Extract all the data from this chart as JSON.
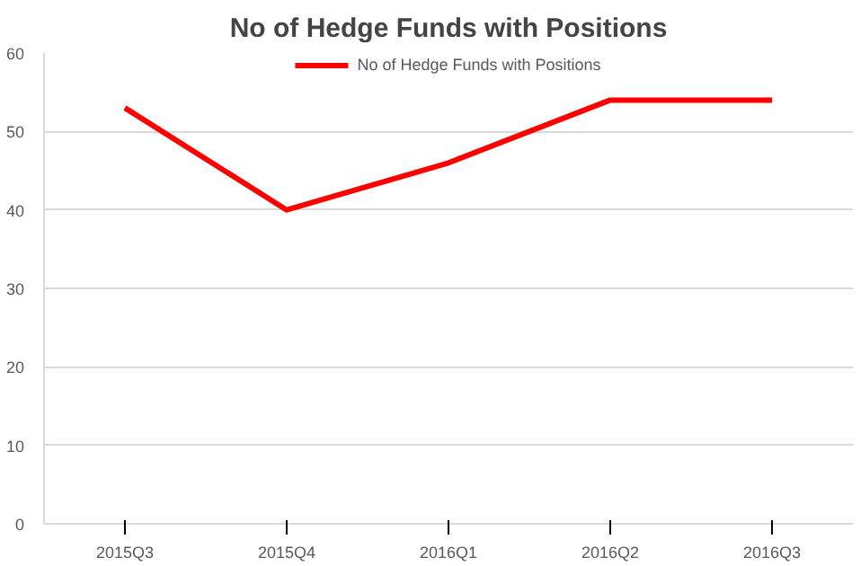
{
  "chart_data": {
    "type": "line",
    "title": "No of Hedge Funds with Positions",
    "categories": [
      "2015Q3",
      "2015Q4",
      "2016Q1",
      "2016Q2",
      "2016Q3"
    ],
    "series": [
      {
        "name": "No of Hedge Funds with Positions",
        "color": "#ff0000",
        "values": [
          53,
          40,
          46,
          54,
          54
        ]
      }
    ],
    "ylim": [
      0,
      60
    ],
    "yticks": [
      0,
      10,
      20,
      30,
      40,
      50,
      60
    ],
    "grid": "y",
    "legend": "top",
    "marker": "none",
    "line_style": "solid"
  }
}
